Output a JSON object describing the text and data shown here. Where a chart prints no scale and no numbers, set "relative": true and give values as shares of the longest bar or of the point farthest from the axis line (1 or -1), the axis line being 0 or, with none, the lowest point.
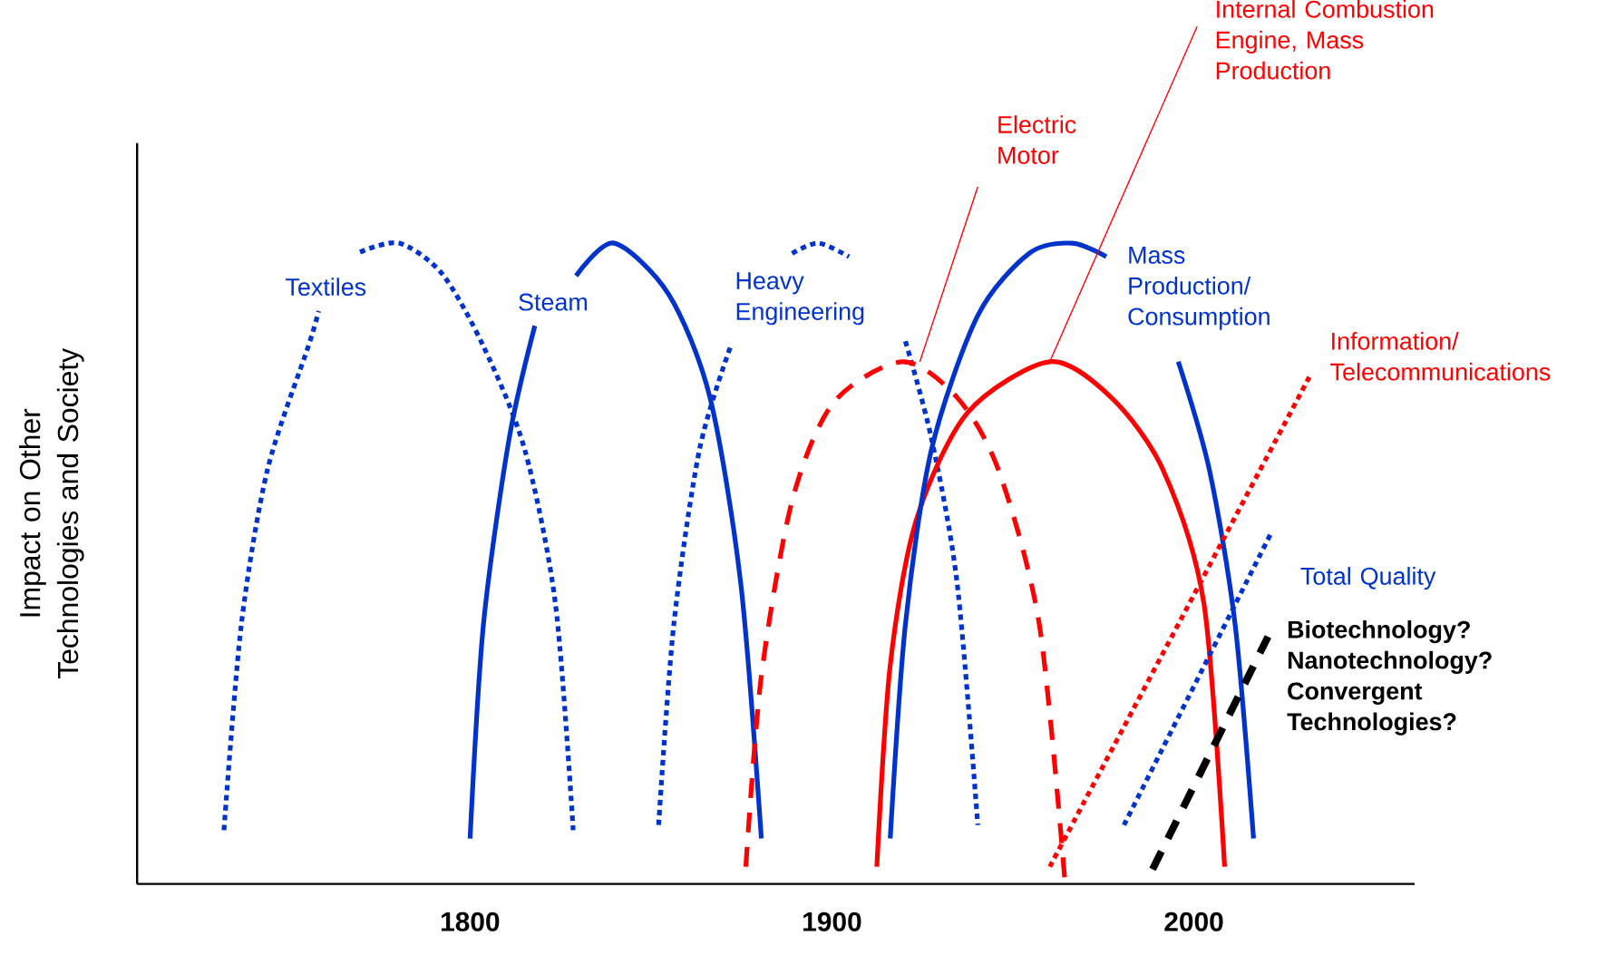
{
  "chart_data": {
    "type": "line",
    "relative": true,
    "ylabel": "Impact on Other Technologies and Society",
    "xlim": [
      1708,
      2061
    ],
    "xticks": [
      1800,
      1900,
      2000
    ],
    "marker": "none",
    "series": [
      {
        "name": "Textiles",
        "color": "#0033cc",
        "line_style": "dotted",
        "x": [
          1732.0,
          1736.8,
          1744.0,
          1755.3,
          1758.2,
          1764,
          1769.6,
          1780.4,
          1792.3,
          1803.7,
          1815.1,
          1823.6,
          1828.5
        ],
        "values": [
          0.084,
          0.405,
          0.646,
          0.839,
          0.894,
          null,
          0.986,
          1.0,
          0.952,
          0.839,
          0.678,
          0.437,
          0.084
        ]
      },
      {
        "name": "Steam",
        "color": "#0033cc",
        "line_style": "solid",
        "x": [
          1800,
          1803.7,
          1810.8,
          1817.9,
          1825,
          1829.3,
          1839.8,
          1854.9,
          1866.3,
          1874.8,
          1880.5
        ],
        "values": [
          0.071,
          0.405,
          0.695,
          0.871,
          null,
          0.949,
          1.0,
          0.92,
          0.759,
          0.469,
          0.071
        ]
      },
      {
        "name": "Heavy Engineering",
        "color": "#0033cc",
        "line_style": "dotted",
        "x": [
          1852.1,
          1856.3,
          1863.4,
          1872.0,
          1880,
          1889.0,
          1896.2,
          1904.7,
          1915,
          1920.3,
          1927.5,
          1934.6,
          1940.3
        ],
        "values": [
          0.092,
          0.405,
          0.678,
          0.839,
          null,
          0.984,
          1.0,
          0.979,
          null,
          0.847,
          0.695,
          0.469,
          0.092
        ]
      },
      {
        "name": "Electric Motor",
        "color": "#ff0000",
        "line_style": "dashed",
        "x": [
          1876.2,
          1880.5,
          1889.0,
          1900.4,
          1919.5,
          1934.6,
          1946.0,
          1957.3,
          1964.4
        ],
        "values": [
          0.027,
          0.325,
          0.598,
          0.751,
          0.815,
          0.759,
          0.646,
          0.405,
          0.003
        ]
      },
      {
        "name": "Internal Combustion Engine, Mass Production",
        "color": "#ff0000",
        "line_style": "solid",
        "x": [
          1912.4,
          1916.1,
          1923.2,
          1937.4,
          1960.2,
          1977.2,
          1991.5,
          2002.8,
          2008.5
        ],
        "values": [
          0.027,
          0.341,
          0.566,
          0.735,
          0.815,
          0.759,
          0.646,
          0.437,
          0.027
        ]
      },
      {
        "name": "Mass Production/ Consumption",
        "color": "#0033cc",
        "line_style": "solid",
        "x": [
          1916.1,
          1920.3,
          1927.5,
          1940.3,
          1954.5,
          1966.4,
          1975.8,
          1990,
          1995.7,
          2004.3,
          2011.4,
          2016.5
        ],
        "values": [
          0.071,
          0.405,
          0.678,
          0.887,
          0.984,
          1.0,
          0.979,
          null,
          0.815,
          0.646,
          0.405,
          0.071
        ]
      },
      {
        "name": "Information/ Telecommunications",
        "color": "#ff0000",
        "line_style": "dotted",
        "x": [
          1960.2,
          2031.9
        ],
        "values": [
          0.027,
          0.791
        ]
      },
      {
        "name": "Total Quality",
        "color": "#0033cc",
        "line_style": "dotted",
        "x": [
          1980.7,
          2021.3
        ],
        "values": [
          0.092,
          0.547
        ]
      },
      {
        "name": "**Biotechnology? Nanotechnology? Convergent Technologies?**",
        "color": "#000000",
        "line_style": "dashed",
        "x": [
          1988.6,
          2020.5
        ],
        "values": [
          0.023,
          0.386
        ]
      }
    ]
  }
}
